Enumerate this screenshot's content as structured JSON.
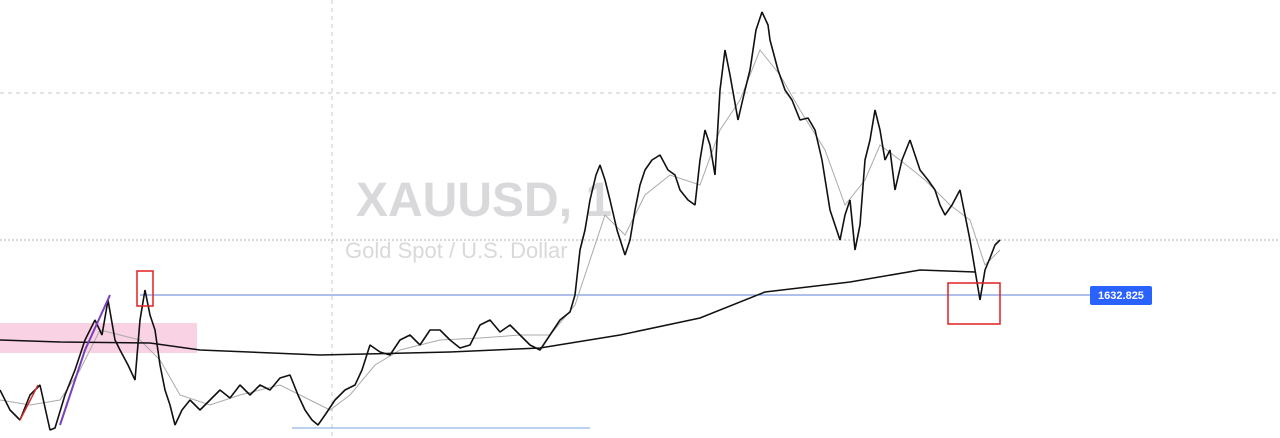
{
  "watermark": {
    "symbol": "XAUUSD, 1",
    "name": "Gold Spot / U.S. Dollar"
  },
  "price_label": "1632.825"
}
